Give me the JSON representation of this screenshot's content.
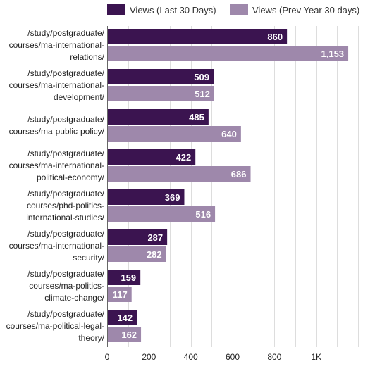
{
  "chart_data": {
    "type": "bar",
    "orientation": "horizontal",
    "categories": [
      [
        "/study/postgraduate/",
        "courses/ma-international-",
        "relations/"
      ],
      [
        "/study/postgraduate/",
        "courses/ma-international-",
        "development/"
      ],
      [
        "/study/postgraduate/",
        "courses/ma-public-policy/"
      ],
      [
        "/study/postgraduate/",
        "courses/ma-international-",
        "political-economy/"
      ],
      [
        "/study/postgraduate/",
        "courses/phd-politics-",
        "international-studies/"
      ],
      [
        "/study/postgraduate/",
        "courses/ma-international-",
        "security/"
      ],
      [
        "/study/postgraduate/",
        "courses/ma-politics-",
        "climate-change/"
      ],
      [
        "/study/postgraduate/",
        "courses/ma-political-legal-",
        "theory/"
      ]
    ],
    "series": [
      {
        "name": "Views (Last 30 Days)",
        "color": "#3b1450",
        "values": [
          860,
          509,
          485,
          422,
          369,
          287,
          159,
          142
        ],
        "labels": [
          "860",
          "509",
          "485",
          "422",
          "369",
          "287",
          "159",
          "142"
        ]
      },
      {
        "name": "Views (Prev Year 30 days)",
        "color": "#9e88ab",
        "values": [
          1153,
          512,
          640,
          686,
          516,
          282,
          117,
          162
        ],
        "labels": [
          "1,153",
          "512",
          "640",
          "686",
          "516",
          "282",
          "117",
          "162"
        ]
      }
    ],
    "xlim": [
      0,
      1200
    ],
    "xticks": [
      0,
      200,
      400,
      600,
      800,
      1000
    ],
    "xtick_labels": [
      "0",
      "200",
      "400",
      "600",
      "800",
      "1K"
    ],
    "grid_step": 100,
    "legend_position": "top",
    "grid": true
  }
}
